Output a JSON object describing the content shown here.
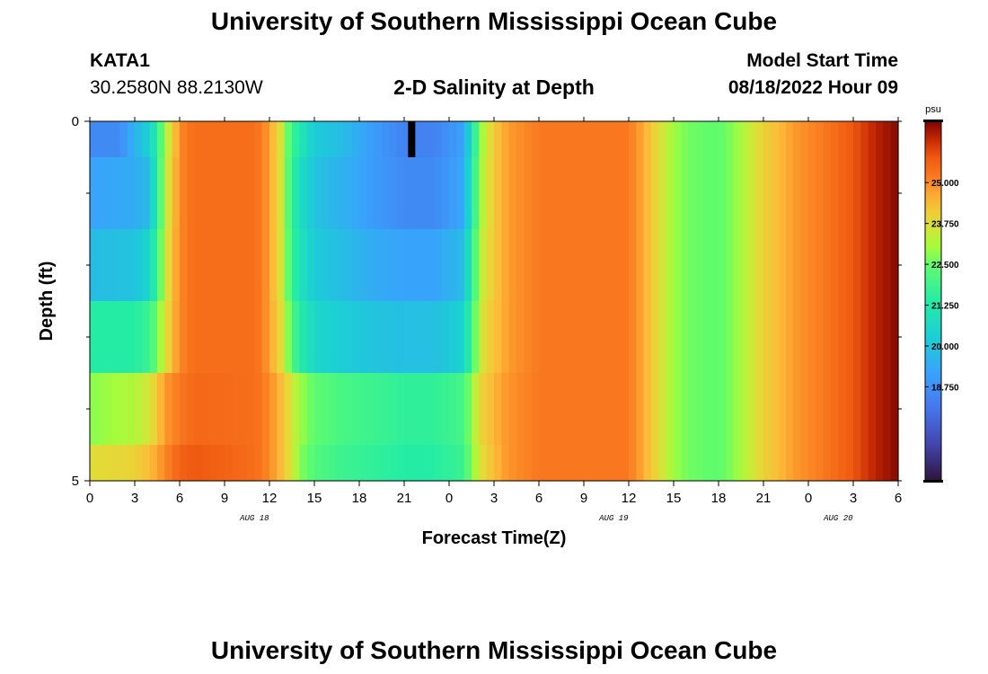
{
  "page": {
    "title": "University of Southern Mississippi Ocean Cube",
    "bottom_title": "University of Southern Mississippi Ocean Cube"
  },
  "station": {
    "id": "KATA1",
    "coords": "30.2580N  88.2130W"
  },
  "plot_title": "2-D Salinity at Depth",
  "model_start": {
    "label": "Model Start Time",
    "value": "08/18/2022 Hour 09"
  },
  "colors": {
    "background": "#ffffff",
    "axis": "#000000",
    "missing_marker": "#000000"
  },
  "chart_data": {
    "type": "heatmap",
    "title": "2-D Salinity at Depth",
    "xlabel": "Forecast Time(Z)",
    "ylabel": "Depth (ft)",
    "units": "psu",
    "x_tick_labels": [
      "0",
      "3",
      "6",
      "9",
      "12",
      "15",
      "18",
      "21",
      "0",
      "3",
      "6",
      "9",
      "12",
      "15",
      "18",
      "21",
      "0",
      "3",
      "6"
    ],
    "x_tick_hours": [
      0,
      3,
      6,
      9,
      12,
      15,
      18,
      21,
      24,
      27,
      30,
      33,
      36,
      39,
      42,
      45,
      48,
      51,
      54
    ],
    "date_labels": [
      {
        "text": "AUG 18",
        "hour": 11
      },
      {
        "text": "AUG 19",
        "hour": 35
      },
      {
        "text": "AUG 20",
        "hour": 50
      }
    ],
    "x_range_hours": [
      0,
      54
    ],
    "y_tick_labels": [
      "0",
      "5"
    ],
    "y_range_ft": [
      0,
      5
    ],
    "depth_layers_ft": [
      [
        0.0,
        0.5
      ],
      [
        0.5,
        1.5
      ],
      [
        1.5,
        2.5
      ],
      [
        2.5,
        3.5
      ],
      [
        3.5,
        4.5
      ],
      [
        4.5,
        5.0
      ]
    ],
    "color_range": [
      15.875,
      26.875
    ],
    "colorbar_labels": [
      "25.000",
      "23.750",
      "22.500",
      "21.250",
      "20.000",
      "18.750"
    ],
    "colorbar_values": [
      25.0,
      23.75,
      22.5,
      21.25,
      20.0,
      18.75
    ],
    "colorbar_unit_label": "psu",
    "missing_value_marker": {
      "hour": 21.5,
      "depth_range_ft": [
        0.0,
        0.5
      ]
    },
    "series": [
      {
        "name": "0 ft",
        "points": [
          [
            0,
            18.6
          ],
          [
            2,
            18.6
          ],
          [
            3,
            19.6
          ],
          [
            4,
            20.4
          ],
          [
            4.5,
            21.5
          ],
          [
            5,
            23.0
          ],
          [
            5.5,
            24.0
          ],
          [
            6,
            25.0
          ],
          [
            7,
            25.4
          ],
          [
            11,
            25.4
          ],
          [
            12,
            24.8
          ],
          [
            12.8,
            23.6
          ],
          [
            13.5,
            21.8
          ],
          [
            14,
            21.2
          ],
          [
            15,
            20.2
          ],
          [
            17,
            19.8
          ],
          [
            19,
            19.0
          ],
          [
            21,
            18.4
          ],
          [
            23,
            18.4
          ],
          [
            25,
            19.2
          ],
          [
            25.5,
            21.0
          ],
          [
            26.2,
            23.0
          ],
          [
            27,
            24.2
          ],
          [
            28,
            24.8
          ],
          [
            30,
            25.2
          ],
          [
            36,
            25.2
          ],
          [
            37,
            24.6
          ],
          [
            38,
            23.8
          ],
          [
            39,
            23.0
          ],
          [
            40,
            22.6
          ],
          [
            42,
            22.4
          ],
          [
            43,
            22.8
          ],
          [
            45,
            24.0
          ],
          [
            47,
            24.8
          ],
          [
            49,
            25.2
          ],
          [
            51,
            25.8
          ],
          [
            52.5,
            26.4
          ],
          [
            54,
            26.8
          ]
        ]
      },
      {
        "name": "1 ft",
        "points": [
          [
            0,
            19.2
          ],
          [
            3,
            19.4
          ],
          [
            4,
            19.8
          ],
          [
            4.5,
            21.5
          ],
          [
            5,
            23.2
          ],
          [
            5.5,
            24.2
          ],
          [
            6,
            25.0
          ],
          [
            7,
            25.4
          ],
          [
            11,
            25.4
          ],
          [
            12,
            24.8
          ],
          [
            12.8,
            23.6
          ],
          [
            13.5,
            21.6
          ],
          [
            14,
            20.8
          ],
          [
            15,
            20.0
          ],
          [
            17,
            19.5
          ],
          [
            19,
            19.0
          ],
          [
            21,
            18.6
          ],
          [
            23,
            18.6
          ],
          [
            25,
            19.3
          ],
          [
            25.5,
            21.2
          ],
          [
            26.2,
            23.2
          ],
          [
            27,
            24.2
          ],
          [
            28,
            24.8
          ],
          [
            30,
            25.2
          ],
          [
            36,
            25.2
          ],
          [
            37,
            24.6
          ],
          [
            38,
            23.8
          ],
          [
            39,
            23.0
          ],
          [
            40,
            22.6
          ],
          [
            42,
            22.4
          ],
          [
            43,
            22.8
          ],
          [
            45,
            24.0
          ],
          [
            47,
            24.8
          ],
          [
            49,
            25.2
          ],
          [
            51,
            25.8
          ],
          [
            52.5,
            26.4
          ],
          [
            54,
            26.8
          ]
        ]
      },
      {
        "name": "2 ft",
        "points": [
          [
            0,
            19.8
          ],
          [
            3,
            20.0
          ],
          [
            4,
            20.6
          ],
          [
            4.5,
            21.8
          ],
          [
            5,
            23.4
          ],
          [
            5.5,
            24.3
          ],
          [
            6,
            25.0
          ],
          [
            7,
            25.4
          ],
          [
            11,
            25.4
          ],
          [
            12,
            24.8
          ],
          [
            12.8,
            23.6
          ],
          [
            13.5,
            21.8
          ],
          [
            14,
            21.0
          ],
          [
            15,
            20.2
          ],
          [
            17,
            19.8
          ],
          [
            19,
            19.4
          ],
          [
            21,
            19.2
          ],
          [
            23,
            19.2
          ],
          [
            25,
            19.8
          ],
          [
            25.5,
            21.6
          ],
          [
            26.2,
            23.4
          ],
          [
            27,
            24.2
          ],
          [
            28,
            24.8
          ],
          [
            30,
            25.2
          ],
          [
            36,
            25.2
          ],
          [
            37,
            24.6
          ],
          [
            38,
            23.8
          ],
          [
            39,
            23.0
          ],
          [
            40,
            22.6
          ],
          [
            42,
            22.4
          ],
          [
            43,
            22.8
          ],
          [
            45,
            24.0
          ],
          [
            47,
            24.8
          ],
          [
            49,
            25.2
          ],
          [
            51,
            25.8
          ],
          [
            52.5,
            26.4
          ],
          [
            54,
            26.8
          ]
        ]
      },
      {
        "name": "3 ft",
        "points": [
          [
            0,
            21.4
          ],
          [
            3,
            21.4
          ],
          [
            4,
            21.8
          ],
          [
            4.5,
            22.6
          ],
          [
            5,
            23.6
          ],
          [
            5.5,
            24.4
          ],
          [
            6,
            25.0
          ],
          [
            7,
            25.4
          ],
          [
            11,
            25.4
          ],
          [
            12,
            24.8
          ],
          [
            12.8,
            23.8
          ],
          [
            13.5,
            22.2
          ],
          [
            14,
            21.4
          ],
          [
            15,
            20.6
          ],
          [
            17,
            20.2
          ],
          [
            19,
            20.0
          ],
          [
            21,
            19.9
          ],
          [
            23,
            19.9
          ],
          [
            25,
            20.4
          ],
          [
            25.5,
            22.0
          ],
          [
            26.2,
            23.6
          ],
          [
            27,
            24.3
          ],
          [
            28,
            24.8
          ],
          [
            30,
            25.2
          ],
          [
            36,
            25.2
          ],
          [
            37,
            24.6
          ],
          [
            38,
            23.8
          ],
          [
            39,
            23.0
          ],
          [
            40,
            22.6
          ],
          [
            42,
            22.4
          ],
          [
            43,
            22.8
          ],
          [
            45,
            24.0
          ],
          [
            47,
            24.8
          ],
          [
            49,
            25.2
          ],
          [
            51,
            25.8
          ],
          [
            52.5,
            26.4
          ],
          [
            54,
            26.8
          ]
        ]
      },
      {
        "name": "4 ft",
        "points": [
          [
            0,
            22.8
          ],
          [
            3,
            23.2
          ],
          [
            4,
            23.6
          ],
          [
            4.5,
            24.2
          ],
          [
            5,
            24.8
          ],
          [
            6,
            25.2
          ],
          [
            7,
            25.5
          ],
          [
            11,
            25.4
          ],
          [
            12,
            25.0
          ],
          [
            12.8,
            24.4
          ],
          [
            13.5,
            23.6
          ],
          [
            14,
            23.0
          ],
          [
            15,
            22.4
          ],
          [
            17,
            22.0
          ],
          [
            19,
            21.8
          ],
          [
            21,
            21.6
          ],
          [
            23,
            21.6
          ],
          [
            25,
            22.0
          ],
          [
            25.5,
            23.0
          ],
          [
            26.2,
            24.0
          ],
          [
            27,
            24.5
          ],
          [
            28,
            24.9
          ],
          [
            30,
            25.2
          ],
          [
            36,
            25.2
          ],
          [
            37,
            24.6
          ],
          [
            38,
            23.8
          ],
          [
            39,
            23.0
          ],
          [
            40,
            22.6
          ],
          [
            42,
            22.4
          ],
          [
            43,
            22.8
          ],
          [
            45,
            24.0
          ],
          [
            47,
            24.8
          ],
          [
            49,
            25.2
          ],
          [
            51,
            25.8
          ],
          [
            52.5,
            26.4
          ],
          [
            54,
            26.8
          ]
        ]
      },
      {
        "name": "5 ft",
        "points": [
          [
            0,
            23.8
          ],
          [
            3,
            24.0
          ],
          [
            4,
            24.4
          ],
          [
            5,
            25.0
          ],
          [
            6,
            25.6
          ],
          [
            7,
            25.8
          ],
          [
            9,
            25.6
          ],
          [
            11,
            25.4
          ],
          [
            12,
            25.0
          ],
          [
            12.8,
            24.4
          ],
          [
            13.5,
            23.6
          ],
          [
            14,
            22.8
          ],
          [
            15,
            22.2
          ],
          [
            17,
            21.8
          ],
          [
            19,
            21.6
          ],
          [
            21,
            21.4
          ],
          [
            23,
            21.4
          ],
          [
            25,
            21.8
          ],
          [
            25.5,
            22.8
          ],
          [
            26.2,
            23.8
          ],
          [
            27,
            24.4
          ],
          [
            28,
            24.9
          ],
          [
            30,
            25.2
          ],
          [
            36,
            25.2
          ],
          [
            37,
            24.6
          ],
          [
            38,
            23.8
          ],
          [
            39,
            23.0
          ],
          [
            40,
            22.6
          ],
          [
            42,
            22.4
          ],
          [
            43,
            22.8
          ],
          [
            45,
            24.0
          ],
          [
            47,
            24.8
          ],
          [
            49,
            25.2
          ],
          [
            51,
            25.8
          ],
          [
            52.5,
            26.4
          ],
          [
            54,
            26.8
          ]
        ]
      }
    ]
  }
}
